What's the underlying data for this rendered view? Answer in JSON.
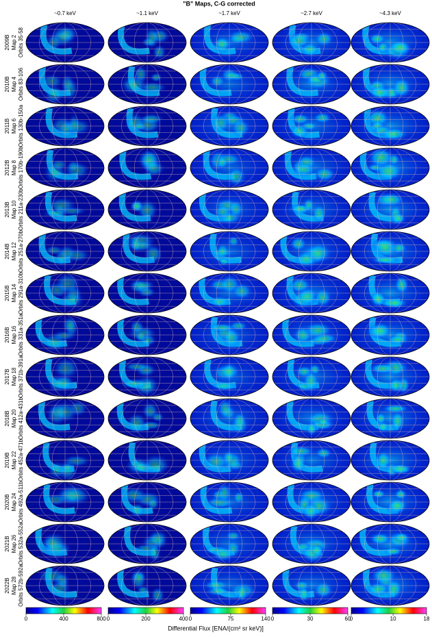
{
  "title": "\"B\" Maps, C-G corrected",
  "columns": [
    "~0.7 keV",
    "~1.1 keV",
    "~1.7 keV",
    "~2.7 keV",
    "~4.3 keV"
  ],
  "rows": [
    [
      "2009B",
      "Map 2",
      "Orbits 35-58"
    ],
    [
      "2010B",
      "Map 4",
      "Orbits 83-106"
    ],
    [
      "2011B",
      "Map 6",
      "Orbits 130b-150a"
    ],
    [
      "2012B",
      "Map 8",
      "Orbits 170b-190b"
    ],
    [
      "2013B",
      "Map 10",
      "Orbits 211a-230b"
    ],
    [
      "2014B",
      "Map 12",
      "Orbits 251a-270b"
    ],
    [
      "2015B",
      "Map 14",
      "Orbits 291a-310b"
    ],
    [
      "2016B",
      "Map 16",
      "Orbits 331a-351a"
    ],
    [
      "2017B",
      "Map 18",
      "Orbits 371b-391a"
    ],
    [
      "2018B",
      "Map 20",
      "Orbits 412a-431b"
    ],
    [
      "2019B",
      "Map 22",
      "Orbits 452a-471b"
    ],
    [
      "2020B",
      "Map 24",
      "Orbits 492a-511b"
    ],
    [
      "2021B",
      "Map 26",
      "Orbits 532a-552a"
    ],
    [
      "2022B",
      "Map 28",
      "Orbits 572b-592a"
    ]
  ],
  "colorbars": [
    {
      "lim": [
        0,
        800
      ],
      "ticks": [
        0,
        400,
        800
      ]
    },
    {
      "lim": [
        0,
        400
      ],
      "ticks": [
        0,
        200,
        400
      ]
    },
    {
      "lim": [
        0,
        140
      ],
      "ticks": [
        0,
        75,
        140
      ]
    },
    {
      "lim": [
        0,
        60
      ],
      "ticks": [
        0,
        30,
        60
      ]
    },
    {
      "lim": [
        0,
        18
      ],
      "ticks": [
        0,
        10,
        18
      ]
    }
  ],
  "colorbar_label": "Differential Flux [ENA/(cm² sr keV)]"
}
